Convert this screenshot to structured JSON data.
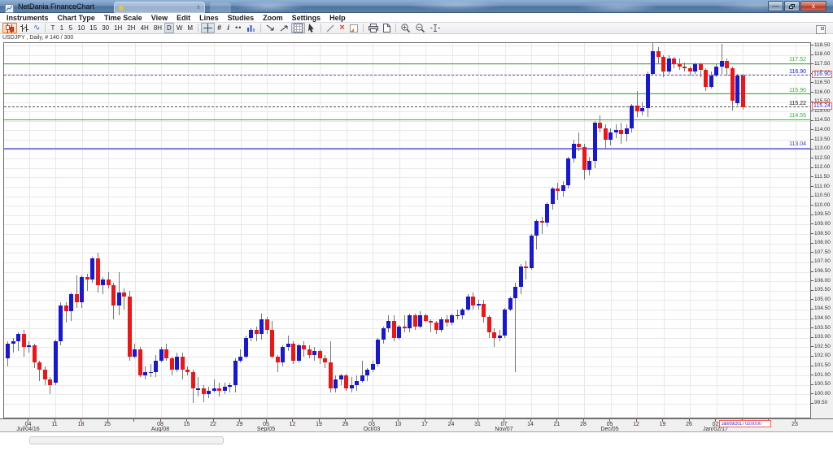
{
  "window": {
    "title": "NetDania FinanceChart",
    "buttons": {
      "minimize": "minimize",
      "maximize": "restore",
      "close": "close"
    },
    "close_glyph": "x",
    "minimize_glyph": "—"
  },
  "menu": {
    "items": [
      "Instruments",
      "Chart Type",
      "Time Scale",
      "View",
      "Edit",
      "Lines",
      "Studies",
      "Zoom",
      "Settings",
      "Help"
    ]
  },
  "toolbar": {
    "groups": [
      {
        "items": [
          {
            "name": "chart-type-candlestick",
            "icon": "candles",
            "pressed": "orange"
          },
          {
            "name": "chart-type-bars",
            "icon": "bars"
          },
          {
            "name": "chart-type-line",
            "icon": "line"
          }
        ]
      },
      {
        "items": [
          {
            "name": "timeframe-tick",
            "label": "T"
          },
          {
            "name": "timeframe-1m",
            "label": "1"
          },
          {
            "name": "timeframe-5m",
            "label": "5"
          },
          {
            "name": "timeframe-10m",
            "label": "10"
          },
          {
            "name": "timeframe-15m",
            "label": "15"
          },
          {
            "name": "timeframe-30m",
            "label": "30"
          },
          {
            "name": "timeframe-1h",
            "label": "1H"
          },
          {
            "name": "timeframe-2h",
            "label": "2H"
          },
          {
            "name": "timeframe-4h",
            "label": "4H"
          },
          {
            "name": "timeframe-8h",
            "label": "8H"
          },
          {
            "name": "timeframe-daily",
            "label": "D",
            "pressed": "gray"
          },
          {
            "name": "timeframe-weekly",
            "label": "W"
          },
          {
            "name": "timeframe-monthly",
            "label": "M"
          }
        ]
      },
      {
        "items": [
          {
            "name": "crosshair-tool",
            "icon": "crosshair",
            "pressed": "gray"
          },
          {
            "name": "grid-toggle",
            "icon": "grid"
          },
          {
            "name": "info-tool",
            "icon": "info"
          },
          {
            "name": "tracking-dots-tool",
            "icon": "dots"
          },
          {
            "name": "mini-chart-tool",
            "icon": "minichart"
          }
        ]
      },
      {
        "items": [
          {
            "name": "trend-line-tool",
            "icon": "trend-down"
          },
          {
            "name": "trend-channel-tool",
            "icon": "trend-up"
          },
          {
            "name": "fibonacci-grid-tool",
            "icon": "fib",
            "pressed": "gray"
          },
          {
            "name": "ray-pointer-tool",
            "icon": "pointer"
          }
        ]
      },
      {
        "items": [
          {
            "name": "remove-line-tool",
            "icon": "slash"
          },
          {
            "name": "delete-all-lines",
            "icon": "red-x"
          },
          {
            "name": "delete-last-line",
            "icon": "corner"
          }
        ]
      },
      {
        "items": [
          {
            "name": "print",
            "icon": "printer"
          },
          {
            "name": "page-setup",
            "icon": "page"
          }
        ]
      },
      {
        "items": [
          {
            "name": "zoom-in",
            "icon": "zoom-in"
          },
          {
            "name": "zoom-out",
            "icon": "zoom-out"
          },
          {
            "name": "zoom-interval",
            "icon": "ibeam"
          }
        ]
      }
    ],
    "right_button": {
      "name": "panel-toggle",
      "icon": "panel"
    }
  },
  "status_line": "USDJPY , Daily, # 140 / 300",
  "chart_data": {
    "type": "candlestick",
    "symbol": "USDJPY",
    "interval": "Daily",
    "candles_shown": "140 / 300",
    "grid": true,
    "y_axis": {
      "min": 99.5,
      "max": 118.5,
      "step": 0.5,
      "side": "right"
    },
    "x_ticks": [
      {
        "i": 4,
        "d": "04",
        "m": "Jul/04/16"
      },
      {
        "i": 9,
        "d": "11"
      },
      {
        "i": 14,
        "d": "18"
      },
      {
        "i": 19,
        "d": "25"
      },
      {
        "i": 24,
        "d": ""
      },
      {
        "i": 29,
        "d": "08",
        "m": "Aug/08"
      },
      {
        "i": 34,
        "d": "15"
      },
      {
        "i": 39,
        "d": "22"
      },
      {
        "i": 44,
        "d": "29"
      },
      {
        "i": 49,
        "d": "05",
        "m": "Sep/05"
      },
      {
        "i": 54,
        "d": "12"
      },
      {
        "i": 59,
        "d": "19"
      },
      {
        "i": 64,
        "d": "26"
      },
      {
        "i": 69,
        "d": "03",
        "m": "Oct/03"
      },
      {
        "i": 74,
        "d": "10"
      },
      {
        "i": 79,
        "d": "17"
      },
      {
        "i": 84,
        "d": "24"
      },
      {
        "i": 89,
        "d": "31"
      },
      {
        "i": 94,
        "d": "07",
        "m": "Nov/07"
      },
      {
        "i": 99,
        "d": "14"
      },
      {
        "i": 104,
        "d": "21"
      },
      {
        "i": 109,
        "d": "28"
      },
      {
        "i": 114,
        "d": "05",
        "m": "Dec/05"
      },
      {
        "i": 119,
        "d": "12"
      },
      {
        "i": 124,
        "d": "19"
      },
      {
        "i": 129,
        "d": "26"
      },
      {
        "i": 134,
        "d": "02",
        "m": "Jan/02/17"
      },
      {
        "i": 139,
        "d": ""
      },
      {
        "i": 144,
        "d": "16"
      },
      {
        "i": 149,
        "d": "23"
      }
    ],
    "overlays": [
      {
        "type": "hline",
        "price": 117.52,
        "style": "solid",
        "color": "#2db82d",
        "label": "117.52",
        "label_color": "#2db82d"
      },
      {
        "type": "hline",
        "price": 116.9,
        "style": "dashed",
        "color": "#5c5cf0",
        "label": "116.90",
        "label_color": "#2121c8",
        "axis_boxed": true
      },
      {
        "type": "hline",
        "price": 115.9,
        "style": "solid",
        "color": "#2db82d",
        "label": "115.90",
        "label_color": "#2db82d"
      },
      {
        "type": "hline",
        "price": 115.22,
        "style": "dashed",
        "color": "#555555",
        "label": "115.22",
        "label_color": "#111111"
      },
      {
        "type": "hline",
        "price": 114.55,
        "style": "solid",
        "color": "#2db82d",
        "label": "114.55",
        "label_color": "#2db82d"
      },
      {
        "type": "hline",
        "price": 113.04,
        "style": "solid2",
        "color": "#8282e0",
        "label": "113.04",
        "label_color": "#3a3ad0"
      }
    ],
    "current_price": "115.24",
    "current_time_label": "Jan/09/2017 03:00:00",
    "colors": {
      "up": "#1717d6",
      "down": "#ef1515",
      "wick": "#777777"
    },
    "candles": [
      [
        101.9,
        102.8,
        101.5,
        102.7
      ],
      [
        102.7,
        103.0,
        102.2,
        102.8
      ],
      [
        102.8,
        103.3,
        102.3,
        103.2
      ],
      [
        103.2,
        103.4,
        102.0,
        102.5
      ],
      [
        102.5,
        102.8,
        102.2,
        102.6
      ],
      [
        102.6,
        102.7,
        101.4,
        101.7
      ],
      [
        101.7,
        101.8,
        100.7,
        101.3
      ],
      [
        101.3,
        101.5,
        100.5,
        100.8
      ],
      [
        100.8,
        100.9,
        100.0,
        100.5
      ],
      [
        100.6,
        102.9,
        100.5,
        102.8
      ],
      [
        102.8,
        104.9,
        102.6,
        104.7
      ],
      [
        104.7,
        104.9,
        103.8,
        104.4
      ],
      [
        104.4,
        105.4,
        103.9,
        105.3
      ],
      [
        105.3,
        106.3,
        104.6,
        104.9
      ],
      [
        104.9,
        106.3,
        104.6,
        106.2
      ],
      [
        106.2,
        106.4,
        105.5,
        106.1
      ],
      [
        106.1,
        107.3,
        105.9,
        107.2
      ],
      [
        107.2,
        107.5,
        105.4,
        105.8
      ],
      [
        105.8,
        106.2,
        105.3,
        106.1
      ],
      [
        106.1,
        106.5,
        105.6,
        105.8
      ],
      [
        105.8,
        105.9,
        104.0,
        104.7
      ],
      [
        104.7,
        106.5,
        104.2,
        105.4
      ],
      [
        105.4,
        105.6,
        104.5,
        105.2
      ],
      [
        105.2,
        105.5,
        101.8,
        102.0
      ],
      [
        102.0,
        102.7,
        101.9,
        102.4
      ],
      [
        102.4,
        102.5,
        100.9,
        101.0
      ],
      [
        101.0,
        101.5,
        100.8,
        101.2
      ],
      [
        101.2,
        101.6,
        100.9,
        101.2
      ],
      [
        101.2,
        102.1,
        100.9,
        101.8
      ],
      [
        101.8,
        102.5,
        101.7,
        102.4
      ],
      [
        102.4,
        102.7,
        101.8,
        101.9
      ],
      [
        101.9,
        102.0,
        101.0,
        101.3
      ],
      [
        101.3,
        102.2,
        101.2,
        102.0
      ],
      [
        102.0,
        102.2,
        100.8,
        101.3
      ],
      [
        101.3,
        101.5,
        101.0,
        101.2
      ],
      [
        101.2,
        101.3,
        99.55,
        100.3
      ],
      [
        100.3,
        100.9,
        99.9,
        100.3
      ],
      [
        100.3,
        100.5,
        99.6,
        100.0
      ],
      [
        100.0,
        100.4,
        99.8,
        100.2
      ],
      [
        100.2,
        100.8,
        100.1,
        100.3
      ],
      [
        100.3,
        100.6,
        99.9,
        100.2
      ],
      [
        100.2,
        100.6,
        100.0,
        100.4
      ],
      [
        100.4,
        100.6,
        100.1,
        100.5
      ],
      [
        100.5,
        101.9,
        100.1,
        101.8
      ],
      [
        101.8,
        102.4,
        101.7,
        102.0
      ],
      [
        102.0,
        103.1,
        101.9,
        103.0
      ],
      [
        103.0,
        103.5,
        102.8,
        103.4
      ],
      [
        103.4,
        103.6,
        102.8,
        103.2
      ],
      [
        103.2,
        104.3,
        102.9,
        104.0
      ],
      [
        104.0,
        104.1,
        103.2,
        103.4
      ],
      [
        103.4,
        103.9,
        101.9,
        102.0
      ],
      [
        102.0,
        102.1,
        101.2,
        101.7
      ],
      [
        101.7,
        102.6,
        101.5,
        102.5
      ],
      [
        102.5,
        103.1,
        102.3,
        102.7
      ],
      [
        102.7,
        102.8,
        101.6,
        101.8
      ],
      [
        101.8,
        102.7,
        101.7,
        102.6
      ],
      [
        102.6,
        102.8,
        102.0,
        102.4
      ],
      [
        102.4,
        102.6,
        101.9,
        102.1
      ],
      [
        102.1,
        102.5,
        101.8,
        102.3
      ],
      [
        102.3,
        102.4,
        101.6,
        101.9
      ],
      [
        101.9,
        102.1,
        101.4,
        101.7
      ],
      [
        101.7,
        102.8,
        100.1,
        100.3
      ],
      [
        100.3,
        101.0,
        100.1,
        100.8
      ],
      [
        100.8,
        101.1,
        100.5,
        101.0
      ],
      [
        101.0,
        101.1,
        100.2,
        100.3
      ],
      [
        100.3,
        100.9,
        100.1,
        100.5
      ],
      [
        100.5,
        101.0,
        100.2,
        100.7
      ],
      [
        100.7,
        101.8,
        100.6,
        101.0
      ],
      [
        101.0,
        101.4,
        100.7,
        101.3
      ],
      [
        101.3,
        101.8,
        101.2,
        101.6
      ],
      [
        101.6,
        103.0,
        101.5,
        102.9
      ],
      [
        102.9,
        103.6,
        102.7,
        103.5
      ],
      [
        103.5,
        104.2,
        103.3,
        103.9
      ],
      [
        103.9,
        104.2,
        102.8,
        103.0
      ],
      [
        103.0,
        103.7,
        102.9,
        103.6
      ],
      [
        103.6,
        104.2,
        103.3,
        103.5
      ],
      [
        103.5,
        104.3,
        103.3,
        104.2
      ],
      [
        104.2,
        104.3,
        103.4,
        103.6
      ],
      [
        103.6,
        104.4,
        103.5,
        104.2
      ],
      [
        104.2,
        104.3,
        103.8,
        103.9
      ],
      [
        103.9,
        104.0,
        103.3,
        103.8
      ],
      [
        103.8,
        103.9,
        103.2,
        103.4
      ],
      [
        103.4,
        104.1,
        103.3,
        104.0
      ],
      [
        104.0,
        104.2,
        103.6,
        103.8
      ],
      [
        103.8,
        104.3,
        103.7,
        104.2
      ],
      [
        104.2,
        104.5,
        104.0,
        104.2
      ],
      [
        104.2,
        104.6,
        104.0,
        104.5
      ],
      [
        104.5,
        105.3,
        104.4,
        105.2
      ],
      [
        105.2,
        105.4,
        104.5,
        104.7
      ],
      [
        104.7,
        105.0,
        104.5,
        104.8
      ],
      [
        104.8,
        105.0,
        103.8,
        104.1
      ],
      [
        104.1,
        104.2,
        103.0,
        103.3
      ],
      [
        103.3,
        103.5,
        102.5,
        103.0
      ],
      [
        103.0,
        103.4,
        102.8,
        103.1
      ],
      [
        103.1,
        104.6,
        103.0,
        104.5
      ],
      [
        104.5,
        105.2,
        104.4,
        105.1
      ],
      [
        105.1,
        105.9,
        101.2,
        105.7
      ],
      [
        105.7,
        106.9,
        105.3,
        106.8
      ],
      [
        106.8,
        107.1,
        106.1,
        106.7
      ],
      [
        106.7,
        108.5,
        106.6,
        108.4
      ],
      [
        108.4,
        109.3,
        107.7,
        109.2
      ],
      [
        109.2,
        109.4,
        108.5,
        109.1
      ],
      [
        109.1,
        110.2,
        108.9,
        110.1
      ],
      [
        110.1,
        111.0,
        109.8,
        110.9
      ],
      [
        110.9,
        111.2,
        110.3,
        110.8
      ],
      [
        110.8,
        111.3,
        110.5,
        111.1
      ],
      [
        111.1,
        112.6,
        110.9,
        112.5
      ],
      [
        112.5,
        113.5,
        112.3,
        113.3
      ],
      [
        113.3,
        113.9,
        112.9,
        113.1
      ],
      [
        113.1,
        113.3,
        111.4,
        111.9
      ],
      [
        111.9,
        112.6,
        111.6,
        112.4
      ],
      [
        112.4,
        114.5,
        112.0,
        114.4
      ],
      [
        114.4,
        114.8,
        113.9,
        114.1
      ],
      [
        114.1,
        114.3,
        113.0,
        113.5
      ],
      [
        113.5,
        114.1,
        113.2,
        113.9
      ],
      [
        113.9,
        114.3,
        113.6,
        114.0
      ],
      [
        114.0,
        114.4,
        113.3,
        113.8
      ],
      [
        113.8,
        114.3,
        113.4,
        114.1
      ],
      [
        114.1,
        115.4,
        113.9,
        115.3
      ],
      [
        115.3,
        116.1,
        114.7,
        115.0
      ],
      [
        115.0,
        115.5,
        114.8,
        115.2
      ],
      [
        115.2,
        117.1,
        114.7,
        117.0
      ],
      [
        117.0,
        118.66,
        116.9,
        118.2
      ],
      [
        118.2,
        118.4,
        117.5,
        117.9
      ],
      [
        117.9,
        118.0,
        116.8,
        117.1
      ],
      [
        117.1,
        118.0,
        117.0,
        117.8
      ],
      [
        117.8,
        117.9,
        117.3,
        117.5
      ],
      [
        117.5,
        117.8,
        117.2,
        117.4
      ],
      [
        117.4,
        117.6,
        117.1,
        117.3
      ],
      [
        117.3,
        117.4,
        116.9,
        117.1
      ],
      [
        117.1,
        117.6,
        117.0,
        117.5
      ],
      [
        117.5,
        117.6,
        116.8,
        117.2
      ],
      [
        117.2,
        117.3,
        116.1,
        116.3
      ],
      [
        116.3,
        117.1,
        116.2,
        116.9
      ],
      [
        116.9,
        117.5,
        116.8,
        117.4
      ],
      [
        117.4,
        118.6,
        117.0,
        117.7
      ],
      [
        117.7,
        117.8,
        116.9,
        117.3
      ],
      [
        117.3,
        117.4,
        115.05,
        115.55
      ],
      [
        115.45,
        117.0,
        115.3,
        116.9
      ],
      [
        116.9,
        117.0,
        115.1,
        115.24
      ]
    ]
  }
}
